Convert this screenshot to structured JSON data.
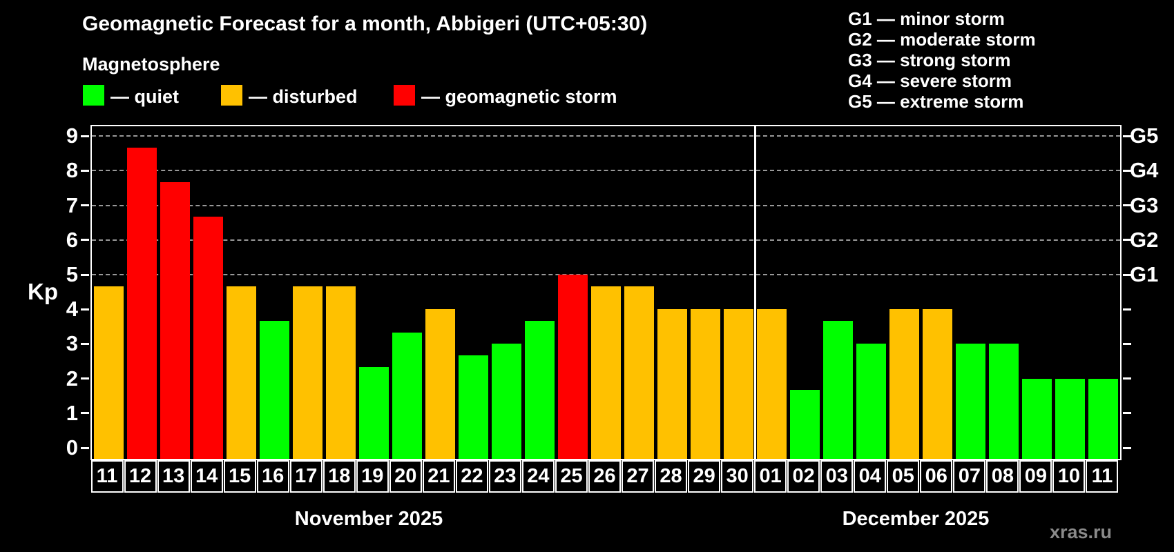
{
  "title": "Geomagnetic Forecast for a month, Abbigeri (UTC+05:30)",
  "subtitle": "Magnetosphere",
  "legend": {
    "items": [
      {
        "name": "quiet",
        "label": "— quiet"
      },
      {
        "name": "disturbed",
        "label": "— disturbed"
      },
      {
        "name": "storm",
        "label": "— geomagnetic storm"
      }
    ]
  },
  "g_legend": [
    "G1 — minor storm",
    "G2 — moderate storm",
    "G3 — strong storm",
    "G4 — severe storm",
    "G5 — extreme storm"
  ],
  "status_colors": {
    "quiet": "#00ff00",
    "disturbed": "#ffc100",
    "storm": "#ff0000"
  },
  "watermark": "xras.ru",
  "chart_data": {
    "type": "bar",
    "title": "Geomagnetic Forecast for a month, Abbigeri (UTC+05:30)",
    "ylabel": "Kp",
    "ylim": [
      0,
      9
    ],
    "yticks": [
      0,
      1,
      2,
      3,
      4,
      5,
      6,
      7,
      8,
      9
    ],
    "gridlines_at": [
      5,
      6,
      7,
      8,
      9
    ],
    "grid": "dashed horizontal at G-levels only",
    "right_axis": [
      {
        "label": "G1",
        "kp": 5
      },
      {
        "label": "G2",
        "kp": 6
      },
      {
        "label": "G3",
        "kp": 7
      },
      {
        "label": "G4",
        "kp": 8
      },
      {
        "label": "G5",
        "kp": 9
      }
    ],
    "legend_position": "top-left",
    "months": [
      {
        "label": "November 2025",
        "days": [
          "11",
          "12",
          "13",
          "14",
          "15",
          "16",
          "17",
          "18",
          "19",
          "20",
          "21",
          "22",
          "23",
          "24",
          "25",
          "26",
          "27",
          "28",
          "29",
          "30"
        ],
        "values": [
          4.67,
          8.67,
          7.67,
          6.67,
          4.67,
          3.67,
          4.67,
          4.67,
          2.33,
          3.33,
          4.0,
          2.67,
          3.0,
          3.67,
          5.0,
          4.67,
          4.67,
          4.0,
          4.0,
          4.0
        ],
        "statuses": [
          "disturbed",
          "storm",
          "storm",
          "storm",
          "disturbed",
          "quiet",
          "disturbed",
          "disturbed",
          "quiet",
          "quiet",
          "disturbed",
          "quiet",
          "quiet",
          "quiet",
          "storm",
          "disturbed",
          "disturbed",
          "disturbed",
          "disturbed",
          "disturbed"
        ]
      },
      {
        "label": "December 2025",
        "days": [
          "01",
          "02",
          "03",
          "04",
          "05",
          "06",
          "07",
          "08",
          "09",
          "10",
          "11"
        ],
        "values": [
          4.0,
          1.67,
          3.67,
          3.0,
          4.0,
          4.0,
          3.0,
          3.0,
          2.0,
          2.0,
          2.0
        ],
        "statuses": [
          "disturbed",
          "quiet",
          "quiet",
          "quiet",
          "disturbed",
          "disturbed",
          "quiet",
          "quiet",
          "quiet",
          "quiet",
          "quiet"
        ]
      }
    ]
  }
}
